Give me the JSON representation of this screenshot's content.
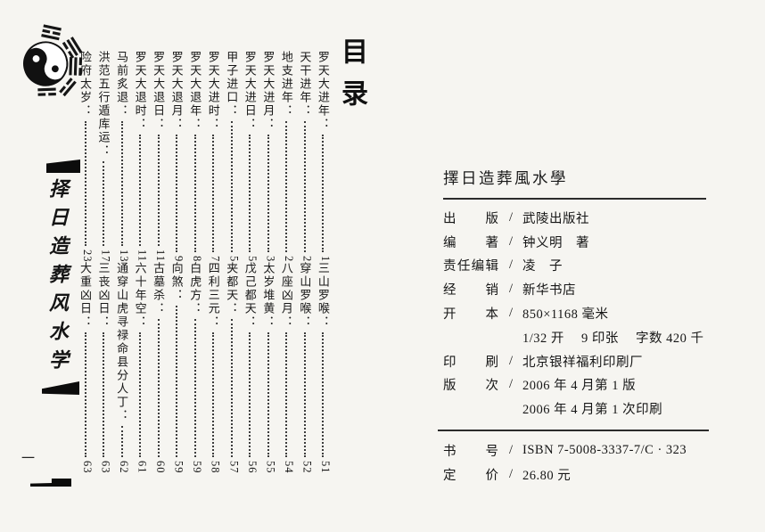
{
  "page": {
    "background": "#f6f5f1",
    "ink": "#1b1b1b"
  },
  "left_page": {
    "heading": "目录",
    "spine_title": "择日造葬风水学",
    "footer_page_number": "一",
    "logo_icon": "taiji-bagua-emblem",
    "colon": "：",
    "toc_columns": [
      {
        "top": {
          "title": "罗天大进年",
          "page": "1"
        },
        "bottom": {
          "title": "三山罗喉",
          "page": "51"
        }
      },
      {
        "top": {
          "title": "天干进年",
          "page": "2"
        },
        "bottom": {
          "title": "穿山罗喉",
          "page": "52"
        }
      },
      {
        "top": {
          "title": "地支进年",
          "page": "2"
        },
        "bottom": {
          "title": "八座凶月",
          "page": "54"
        }
      },
      {
        "top": {
          "title": "罗天大进月",
          "page": "3"
        },
        "bottom": {
          "title": "太岁堆黄",
          "page": "55"
        }
      },
      {
        "top": {
          "title": "罗天大进日",
          "page": "5"
        },
        "bottom": {
          "title": "戊己都天",
          "page": "56"
        }
      },
      {
        "top": {
          "title": "甲子进口",
          "page": "5"
        },
        "bottom": {
          "title": "夹都天",
          "page": "57"
        }
      },
      {
        "top": {
          "title": "罗天大进时",
          "page": "7"
        },
        "bottom": {
          "title": "四利三元",
          "page": "58"
        }
      },
      {
        "top": {
          "title": "罗天大退年",
          "page": "8"
        },
        "bottom": {
          "title": "白虎方",
          "page": "59"
        }
      },
      {
        "top": {
          "title": "罗天大退月",
          "page": "9"
        },
        "bottom": {
          "title": "向煞",
          "page": "59"
        }
      },
      {
        "top": {
          "title": "罗天大退日",
          "page": "11"
        },
        "bottom": {
          "title": "古墓杀",
          "page": "60"
        }
      },
      {
        "top": {
          "title": "罗天大退时",
          "page": "11"
        },
        "bottom": {
          "title": "六十年空",
          "page": "61"
        }
      },
      {
        "top": {
          "title": "马前炙退",
          "page": "13"
        },
        "bottom": {
          "title": "通穿山虎寻禄命县分人丁",
          "page": "62"
        }
      },
      {
        "top": {
          "title": "洪范五行遁库运",
          "page": "17"
        },
        "bottom": {
          "title": "三丧凶日",
          "page": "63"
        }
      },
      {
        "top": {
          "title": "险府太岁",
          "page": "23"
        },
        "bottom": {
          "title": "大重凶日",
          "page": "63"
        }
      }
    ]
  },
  "right_page": {
    "title": "擇日造葬風水學",
    "separator": "/",
    "info_rows": [
      {
        "label": "出版",
        "value": "武陵出版社"
      },
      {
        "label": "编著",
        "value": "钟义明　著"
      },
      {
        "label": "责任编辑",
        "value": "凌　子"
      },
      {
        "label": "经销",
        "value": "新华书店"
      },
      {
        "label": "开本",
        "value": "850×1168 毫米"
      },
      {
        "label": "",
        "value": "1/32 开　 9 印张　 字数 420 千"
      },
      {
        "label": "印刷",
        "value": "北京银祥福利印刷厂"
      },
      {
        "label": "版次",
        "value": "2006 年 4 月第 1 版"
      },
      {
        "label": "",
        "value": "2006 年 4 月第 1 次印刷"
      }
    ],
    "price_rows": [
      {
        "label": "书号",
        "value": "ISBN 7-5008-3337-7/C · 323"
      },
      {
        "label": "定价",
        "value": "26.80 元"
      }
    ]
  }
}
